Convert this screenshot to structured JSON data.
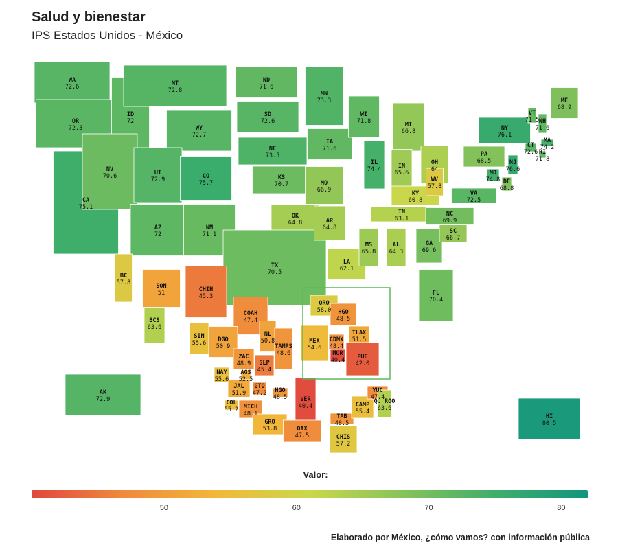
{
  "header": {
    "title": "Salud y bienestar",
    "subtitle": "IPS Estados Unidos - México"
  },
  "legend": {
    "title": "Valor:",
    "ticks": [
      "50",
      "60",
      "70",
      "80"
    ],
    "scale": [
      40,
      82
    ],
    "colors": [
      "#e0483f",
      "#f08a3c",
      "#f2b83a",
      "#c9d84a",
      "#88c35a",
      "#3fae6a",
      "#11957f"
    ]
  },
  "credit": "Elaborado por México, ¿cómo vamos? con información pública",
  "regions": [
    {
      "abbr": "WA",
      "value": "72.6"
    },
    {
      "abbr": "OR",
      "value": "72.3"
    },
    {
      "abbr": "CA",
      "value": "75.1"
    },
    {
      "abbr": "ID",
      "value": "72"
    },
    {
      "abbr": "NV",
      "value": "70.6"
    },
    {
      "abbr": "MT",
      "value": "72.8"
    },
    {
      "abbr": "WY",
      "value": "72.7"
    },
    {
      "abbr": "UT",
      "value": "72.9"
    },
    {
      "abbr": "AZ",
      "value": "72"
    },
    {
      "abbr": "CO",
      "value": "75.7"
    },
    {
      "abbr": "NM",
      "value": "71.1"
    },
    {
      "abbr": "ND",
      "value": "71.6"
    },
    {
      "abbr": "SD",
      "value": "72.6"
    },
    {
      "abbr": "NE",
      "value": "73.5"
    },
    {
      "abbr": "KS",
      "value": "70.7"
    },
    {
      "abbr": "OK",
      "value": "64.8"
    },
    {
      "abbr": "TX",
      "value": "70.5"
    },
    {
      "abbr": "MN",
      "value": "73.3"
    },
    {
      "abbr": "IA",
      "value": "71.6"
    },
    {
      "abbr": "MO",
      "value": "66.9"
    },
    {
      "abbr": "AR",
      "value": "64.8"
    },
    {
      "abbr": "LA",
      "value": "62.1"
    },
    {
      "abbr": "WI",
      "value": "71.8"
    },
    {
      "abbr": "IL",
      "value": "74.4"
    },
    {
      "abbr": "MI",
      "value": "66.8"
    },
    {
      "abbr": "IN",
      "value": "65.6"
    },
    {
      "abbr": "OH",
      "value": "64"
    },
    {
      "abbr": "KY",
      "value": "60.8"
    },
    {
      "abbr": "TN",
      "value": "63.1"
    },
    {
      "abbr": "MS",
      "value": "65.8"
    },
    {
      "abbr": "AL",
      "value": "64.3"
    },
    {
      "abbr": "GA",
      "value": "69.6"
    },
    {
      "abbr": "FL",
      "value": "70.4"
    },
    {
      "abbr": "SC",
      "value": "66.7"
    },
    {
      "abbr": "NC",
      "value": "69.9"
    },
    {
      "abbr": "VA",
      "value": "72.5"
    },
    {
      "abbr": "WV",
      "value": "57.8"
    },
    {
      "abbr": "PA",
      "value": "68.5"
    },
    {
      "abbr": "NY",
      "value": "76.1"
    },
    {
      "abbr": "MD",
      "value": "74.8"
    },
    {
      "abbr": "DE",
      "value": "68.8"
    },
    {
      "abbr": "NJ",
      "value": "76.6"
    },
    {
      "abbr": "CT",
      "value": "72.6"
    },
    {
      "abbr": "RI",
      "value": "71.8"
    },
    {
      "abbr": "MA",
      "value": "74.2"
    },
    {
      "abbr": "VT",
      "value": "71.5"
    },
    {
      "abbr": "NH",
      "value": "71.6"
    },
    {
      "abbr": "ME",
      "value": "68.9"
    },
    {
      "abbr": "AK",
      "value": "72.9"
    },
    {
      "abbr": "HI",
      "value": "80.5"
    },
    {
      "abbr": "BC",
      "value": "57.8"
    },
    {
      "abbr": "BCS",
      "value": "63.6"
    },
    {
      "abbr": "SON",
      "value": "51"
    },
    {
      "abbr": "CHIH",
      "value": "45.3"
    },
    {
      "abbr": "COAH",
      "value": "47.4"
    },
    {
      "abbr": "NL",
      "value": "50.8"
    },
    {
      "abbr": "TAMPS",
      "value": "48.6"
    },
    {
      "abbr": "SIN",
      "value": "55.6"
    },
    {
      "abbr": "DGO",
      "value": "50.9"
    },
    {
      "abbr": "ZAC",
      "value": "48.9"
    },
    {
      "abbr": "SLP",
      "value": "45.4"
    },
    {
      "abbr": "NAY",
      "value": "55.6"
    },
    {
      "abbr": "AGS",
      "value": "52.5"
    },
    {
      "abbr": "JAL",
      "value": "51.9"
    },
    {
      "abbr": "GTO",
      "value": "47.2"
    },
    {
      "abbr": "HGO",
      "value": "48.5"
    },
    {
      "abbr": "COL",
      "value": "55.2"
    },
    {
      "abbr": "MICH",
      "value": "48.1"
    },
    {
      "abbr": "VER",
      "value": "40.4"
    },
    {
      "abbr": "GRO",
      "value": "53.8"
    },
    {
      "abbr": "OAX",
      "value": "47.5"
    },
    {
      "abbr": "TAB",
      "value": "48.5"
    },
    {
      "abbr": "CHIS",
      "value": "57.2"
    },
    {
      "abbr": "CAMP",
      "value": "55.4"
    },
    {
      "abbr": "YUC",
      "value": "47.4"
    },
    {
      "abbr": "Q. ROO",
      "value": "63.6"
    },
    {
      "abbr": "QRO",
      "value": "58.0"
    },
    {
      "abbr": "HGO",
      "value": "48.5"
    },
    {
      "abbr": "TLAX",
      "value": "51.5"
    },
    {
      "abbr": "MEX",
      "value": "54.6"
    },
    {
      "abbr": "CDMX",
      "value": "48.4"
    },
    {
      "abbr": "MOR",
      "value": "40.4"
    },
    {
      "abbr": "PUE",
      "value": "42.0"
    }
  ]
}
